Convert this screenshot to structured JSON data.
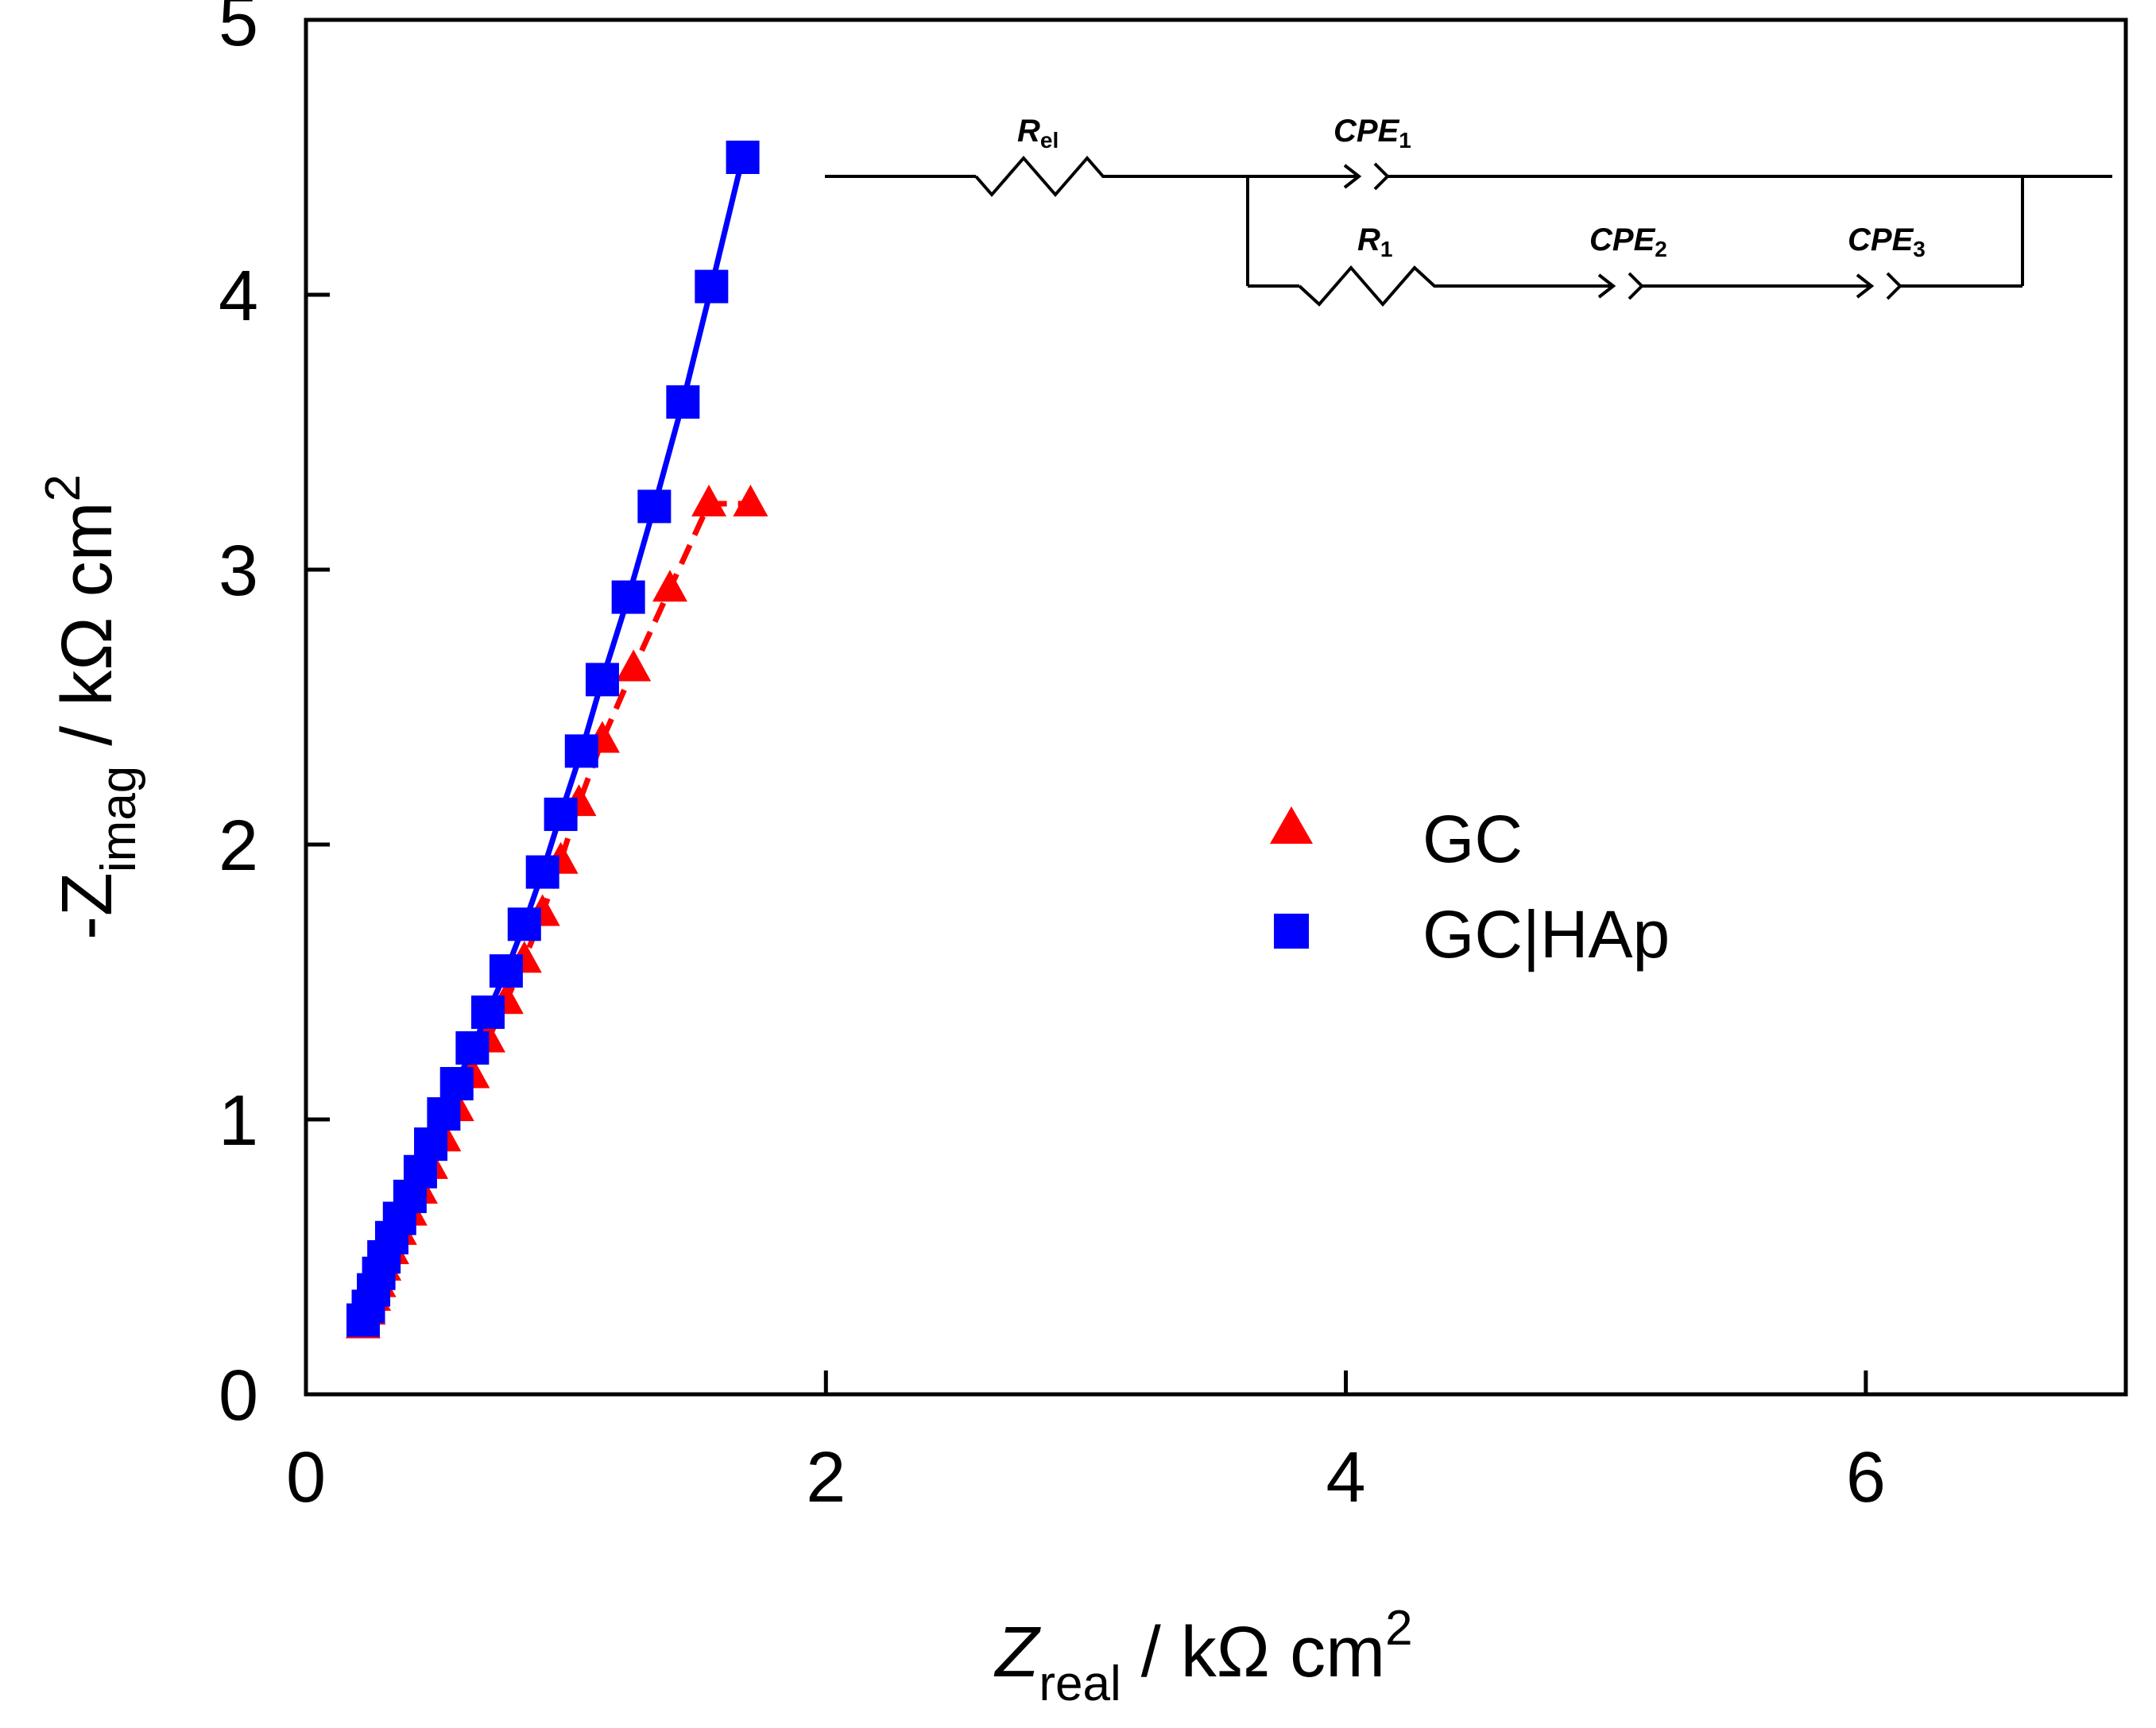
{
  "chart_data": {
    "type": "scatter",
    "xlabel": {
      "main": "Z",
      "sub": "real",
      "rest": " / kΩ cm",
      "sup": "2"
    },
    "ylabel": {
      "main": "-Z",
      "sub": "imag",
      "rest": " / kΩ cm",
      "sup": "2"
    },
    "xlim": [
      0,
      7
    ],
    "ylim": [
      0,
      5
    ],
    "xticks": [
      0,
      2,
      4,
      6
    ],
    "yticks": [
      0,
      1,
      2,
      3,
      4,
      5
    ],
    "legend_position": "center-right",
    "series": [
      {
        "name": "GC",
        "marker": "triangle",
        "color": "#ff0000",
        "line_style": "dashed",
        "x": [
          0.22,
          0.24,
          0.26,
          0.28,
          0.3,
          0.33,
          0.36,
          0.4,
          0.44,
          0.48,
          0.53,
          0.58,
          0.64,
          0.7,
          0.77,
          0.84,
          0.91,
          0.98,
          1.05,
          1.14,
          1.26,
          1.4,
          1.55,
          1.71
        ],
        "y": [
          0.25,
          0.3,
          0.35,
          0.4,
          0.46,
          0.52,
          0.59,
          0.66,
          0.74,
          0.83,
          0.93,
          1.04,
          1.16,
          1.29,
          1.43,
          1.58,
          1.75,
          1.94,
          2.15,
          2.38,
          2.64,
          2.93,
          3.24,
          3.24
        ]
      },
      {
        "name": "GC|HAp",
        "marker": "square",
        "color": "#0000ff",
        "line_style": "solid",
        "x": [
          0.22,
          0.24,
          0.26,
          0.28,
          0.3,
          0.33,
          0.36,
          0.4,
          0.44,
          0.48,
          0.53,
          0.58,
          0.64,
          0.7,
          0.77,
          0.84,
          0.91,
          0.98,
          1.06,
          1.14,
          1.24,
          1.34,
          1.45,
          1.56,
          1.68
        ],
        "y": [
          0.27,
          0.32,
          0.38,
          0.44,
          0.5,
          0.57,
          0.64,
          0.72,
          0.81,
          0.91,
          1.02,
          1.13,
          1.26,
          1.39,
          1.54,
          1.71,
          1.9,
          2.11,
          2.34,
          2.6,
          2.9,
          3.23,
          3.61,
          4.03,
          4.5
        ]
      }
    ],
    "inset_circuit": {
      "elements": [
        {
          "id": "rel",
          "type": "resistor",
          "label": "R",
          "sub": "el"
        },
        {
          "id": "cpe1",
          "type": "cpe",
          "label": "CPE",
          "sub": "1"
        },
        {
          "id": "r1",
          "type": "resistor",
          "label": "R",
          "sub": "1"
        },
        {
          "id": "cpe2",
          "type": "cpe",
          "label": "CPE",
          "sub": "2"
        },
        {
          "id": "cpe3",
          "type": "cpe",
          "label": "CPE",
          "sub": "3"
        }
      ]
    }
  }
}
